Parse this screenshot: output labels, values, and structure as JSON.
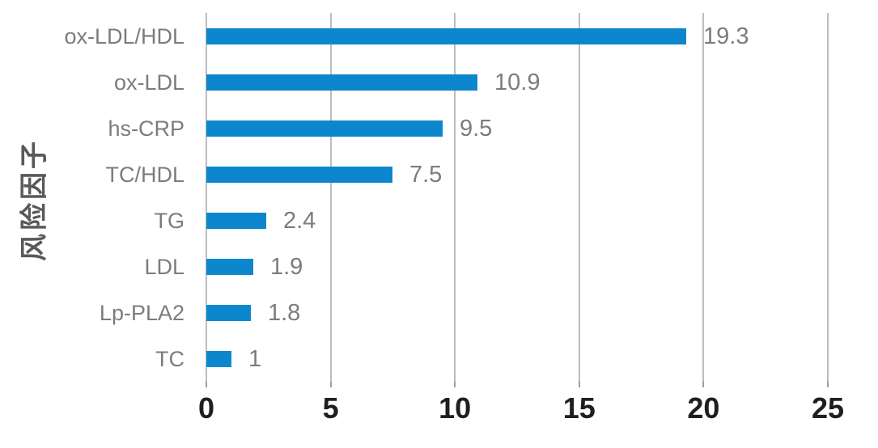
{
  "chart_data": {
    "type": "bar",
    "orientation": "horizontal",
    "title": "",
    "xlabel": "",
    "ylabel": "风险因子",
    "categories": [
      "ox-LDL/HDL",
      "ox-LDL",
      "hs-CRP",
      "TC/HDL",
      "TG",
      "LDL",
      "Lp-PLA2",
      "TC"
    ],
    "values": [
      19.3,
      10.9,
      9.5,
      7.5,
      2.4,
      1.9,
      1.8,
      1
    ],
    "data_labels": [
      "19.3",
      "10.9",
      "9.5",
      "7.5",
      "2.4",
      "1.9",
      "1.8",
      "1"
    ],
    "xlim": [
      0,
      25
    ],
    "x_ticks": [
      0,
      5,
      10,
      15,
      20,
      25
    ],
    "grid": true,
    "legend": "none",
    "bar_color": "#0C87CD",
    "label_color": "#7C7C7C",
    "tick_label_color": "#1F1F1F",
    "axis_title_color": "#595959",
    "gridline_color": "#BDBDBD"
  }
}
